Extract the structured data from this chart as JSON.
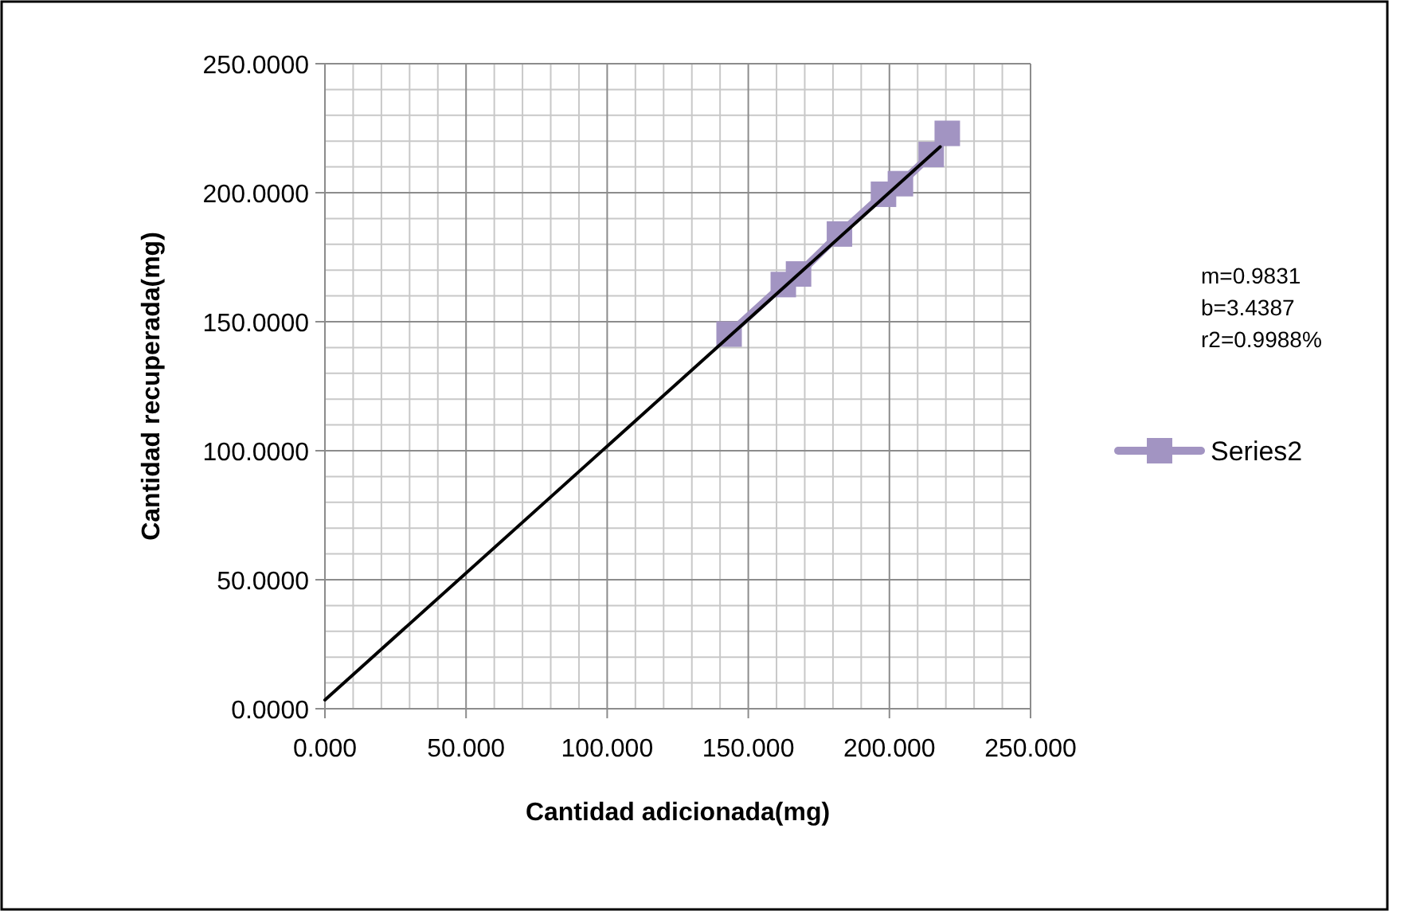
{
  "chart_data": {
    "type": "line",
    "xlabel": "Cantidad adicionada(mg)",
    "ylabel": "Cantidad recuperada(mg)",
    "xlim": [
      0,
      250
    ],
    "xticks": [
      {
        "value": 0,
        "label": "0.000"
      },
      {
        "value": 50,
        "label": "50.000"
      },
      {
        "value": 100,
        "label": "100.000"
      },
      {
        "value": 150,
        "label": "150.000"
      },
      {
        "value": 200,
        "label": "200.000"
      },
      {
        "value": 250,
        "label": "250.000"
      }
    ],
    "ylim": [
      0,
      250
    ],
    "yticks": [
      {
        "value": 0,
        "label": "0.0000"
      },
      {
        "value": 50,
        "label": "50.0000"
      },
      {
        "value": 100,
        "label": "100.0000"
      },
      {
        "value": 150,
        "label": "150.0000"
      },
      {
        "value": 200,
        "label": "200.0000"
      },
      {
        "value": 250,
        "label": "250.0000"
      }
    ],
    "grid": true,
    "legend": "right",
    "marker": "square",
    "line_style": "solid",
    "annotations": [
      "m=0.9831",
      "b=3.4387",
      "r2=0.9988%"
    ],
    "series": [
      {
        "name": "Series2",
        "color": "#a294c2",
        "x": [
          143.2,
          162.4,
          167.8,
          182.3,
          197.9,
          203.9,
          214.8,
          220.5
        ],
        "values": [
          145.2,
          164.4,
          168.5,
          184,
          199.4,
          203.5,
          214.8,
          223
        ]
      },
      {
        "type": "line",
        "color": "#000000",
        "marker": "none",
        "x": [
          0,
          218
        ],
        "values": [
          3.4,
          217.8
        ]
      }
    ]
  }
}
